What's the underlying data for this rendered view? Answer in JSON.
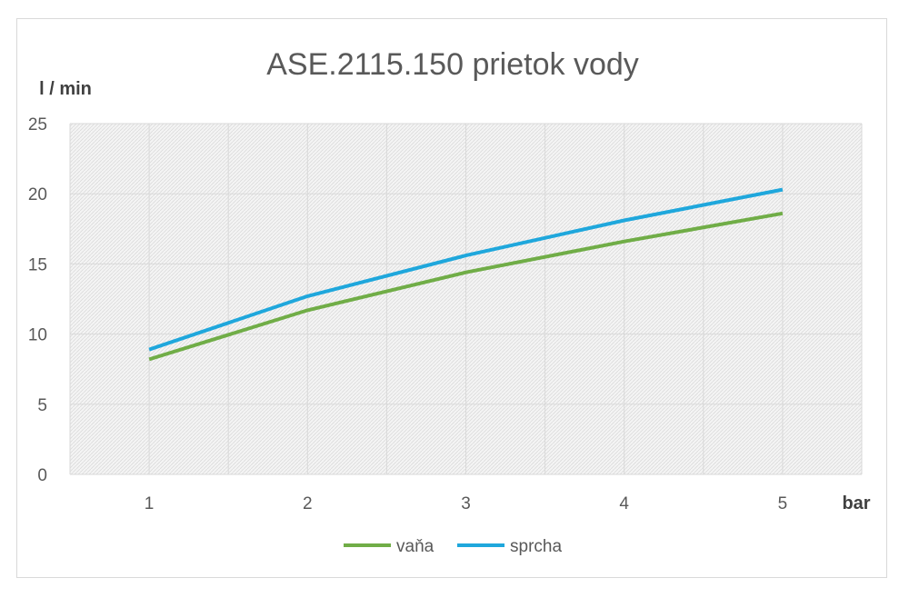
{
  "chart_data": {
    "type": "line",
    "title": "ASE.2115.150 prietok vody",
    "ylabel": "l / min",
    "xlabel": "bar",
    "categories": [
      "1",
      "2",
      "3",
      "4",
      "5"
    ],
    "ylim": [
      0,
      25
    ],
    "yticks": [
      "0",
      "5",
      "10",
      "15",
      "20",
      "25"
    ],
    "grid": true,
    "legend_position": "bottom",
    "series": [
      {
        "name": "vaňa",
        "color": "#70ad47",
        "values": [
          8.2,
          11.7,
          14.4,
          16.6,
          18.6
        ]
      },
      {
        "name": "sprcha",
        "color": "#1fa7dc",
        "values": [
          8.9,
          12.7,
          15.6,
          18.1,
          20.3
        ]
      }
    ]
  }
}
